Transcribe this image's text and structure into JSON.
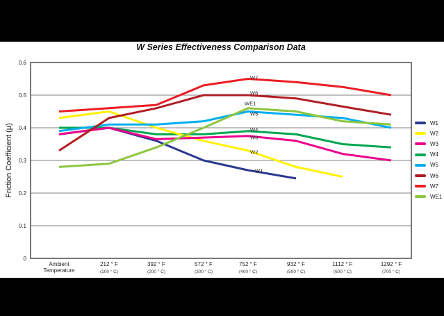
{
  "chart_data": {
    "type": "line",
    "title": "W Series Effectiveness Comparison Data",
    "ylabel": "Friction Coefficient (μ)",
    "ylim": [
      0,
      0.6
    ],
    "yticks": [
      "0.6",
      "0.5",
      "0.4",
      "0.3",
      "0.2",
      "0.1",
      "0"
    ],
    "grid": "horizontal",
    "legend_position": "right",
    "categories": [
      {
        "label": "Ambient",
        "sublabel": "Temperature"
      },
      {
        "label": "212 ° F",
        "sublabel": "(100 ° C)"
      },
      {
        "label": "392 ° F",
        "sublabel": "(200 ° C)"
      },
      {
        "label": "572 ° F",
        "sublabel": "(300 ° C)"
      },
      {
        "label": "752 ° F",
        "sublabel": "(400 ° C)"
      },
      {
        "label": "932 ° F",
        "sublabel": "(500 ° C)"
      },
      {
        "label": "1112 ° F",
        "sublabel": "(600 ° C)"
      },
      {
        "label": "1292 ° F",
        "sublabel": "(700 ° C)"
      }
    ],
    "series": [
      {
        "name": "W1",
        "color": "#2b3990",
        "values": [
          0.38,
          0.4,
          0.36,
          0.3,
          0.27,
          0.245,
          null,
          null
        ]
      },
      {
        "name": "W2",
        "color": "#fff200",
        "values": [
          0.43,
          0.45,
          0.4,
          0.36,
          0.33,
          0.28,
          0.25,
          null
        ]
      },
      {
        "name": "W3",
        "color": "#ec008c",
        "values": [
          0.38,
          0.4,
          0.365,
          0.37,
          0.375,
          0.36,
          0.32,
          0.3
        ]
      },
      {
        "name": "W4",
        "color": "#00a651",
        "values": [
          0.4,
          0.4,
          0.38,
          0.38,
          0.39,
          0.38,
          0.35,
          0.34
        ]
      },
      {
        "name": "W5",
        "color": "#00aeef",
        "values": [
          0.39,
          0.41,
          0.41,
          0.42,
          0.45,
          0.44,
          0.43,
          0.4
        ]
      },
      {
        "name": "W6",
        "color": "#b01e24",
        "values": [
          0.33,
          0.43,
          0.46,
          0.5,
          0.5,
          0.49,
          0.465,
          0.44
        ]
      },
      {
        "name": "W7",
        "color": "#ed1c24",
        "values": [
          0.45,
          0.46,
          0.47,
          0.53,
          0.55,
          0.54,
          0.525,
          0.5
        ]
      },
      {
        "name": "WE1",
        "color": "#8dc63f",
        "values": [
          0.28,
          0.29,
          0.34,
          0.4,
          0.46,
          0.45,
          0.42,
          0.41
        ]
      }
    ],
    "series_labels_on_chart": [
      "W7",
      "W6",
      "WE1",
      "W5",
      "W4",
      "W3",
      "W2",
      "W1"
    ],
    "legend": [
      "W1",
      "W2",
      "W3",
      "W4",
      "W5",
      "W6",
      "W7",
      "WE1"
    ]
  }
}
